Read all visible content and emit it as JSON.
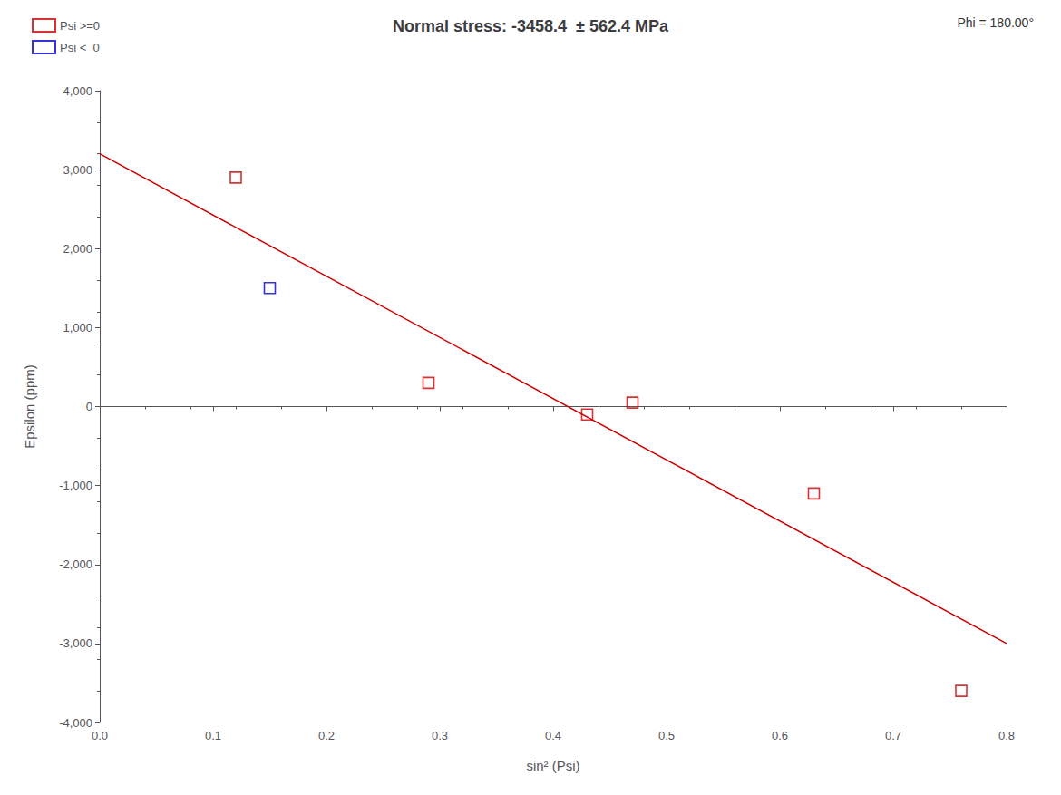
{
  "chart_data": {
    "type": "scatter",
    "title": "Normal stress: -3458.4  ± 562.4 MPa",
    "annotations": [
      "Phi = 180.00°"
    ],
    "xlabel": "sin² (Psi)",
    "ylabel": "Epsilon (ppm)",
    "xlim": [
      0.0,
      0.8
    ],
    "ylim": [
      -4000,
      4000
    ],
    "xticks": [
      {
        "value": 0.0,
        "label": "0.0"
      },
      0.1,
      0.2,
      0.3,
      0.4,
      0.5,
      0.6,
      0.7,
      0.8
    ],
    "yticks": [
      {
        "value": -4000,
        "label": "-4,000"
      },
      {
        "value": -3000,
        "label": "-3,000"
      },
      {
        "value": -2000,
        "label": "-2,000"
      },
      {
        "value": -1000,
        "label": "-1,000"
      },
      0,
      {
        "value": 1000,
        "label": "1,000"
      },
      {
        "value": 2000,
        "label": "2,000"
      },
      {
        "value": 3000,
        "label": "3,000"
      },
      {
        "value": 4000,
        "label": "4,000"
      }
    ],
    "grid": false,
    "legend": "upper left",
    "series": [
      {
        "type": "line",
        "color": "#cc0000",
        "line_style": "solid",
        "x": [
          0.0,
          0.8
        ],
        "values": [
          3200,
          -3000
        ]
      },
      {
        "name": "Psi >=0",
        "type": "scatter",
        "marker": "square",
        "color": "#cc0000",
        "x": [
          0.12,
          0.29,
          0.43,
          0.47,
          0.63,
          0.76
        ],
        "values": [
          2900,
          300,
          -100,
          50,
          -1100,
          -3600
        ]
      },
      {
        "name": "Psi <  0",
        "type": "scatter",
        "marker": "square",
        "color": "#0000cc",
        "x": [
          0.15
        ],
        "values": [
          1500
        ]
      }
    ]
  }
}
